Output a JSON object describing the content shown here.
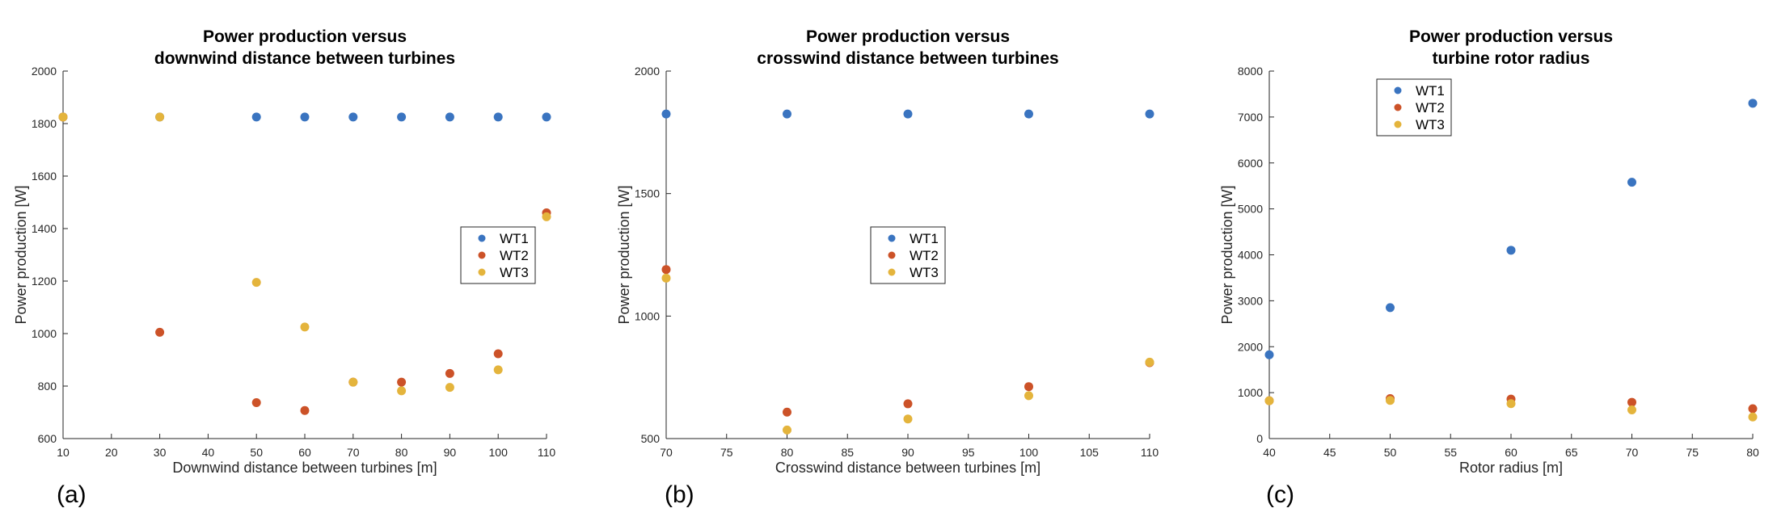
{
  "colors": {
    "WT1": "#3a74c0",
    "WT2": "#cc5228",
    "WT3": "#e4b43c",
    "axis": "#262626"
  },
  "chart_data": [
    {
      "type": "scatter",
      "panel_label": "(a)",
      "title": [
        "Power production versus",
        "downwind distance between turbines"
      ],
      "xlabel": "Downwind distance between turbines  [m]",
      "ylabel": "Power production [W]",
      "xlim": [
        10,
        110
      ],
      "ylim": [
        600,
        2000
      ],
      "xticks": [
        10,
        20,
        30,
        40,
        50,
        60,
        70,
        80,
        90,
        100,
        110
      ],
      "yticks": [
        600,
        800,
        1000,
        1200,
        1400,
        1600,
        1800,
        2000
      ],
      "grid": false,
      "legend": "right-center",
      "series": [
        {
          "name": "WT1",
          "x": [
            10,
            30,
            50,
            60,
            70,
            80,
            90,
            100,
            110
          ],
          "y": [
            1825,
            1825,
            1825,
            1825,
            1825,
            1825,
            1825,
            1825,
            1825
          ]
        },
        {
          "name": "WT2",
          "x": [
            10,
            30,
            50,
            60,
            70,
            80,
            90,
            100,
            110
          ],
          "y": [
            1825,
            1005,
            737,
            707,
            815,
            815,
            848,
            923,
            1460
          ]
        },
        {
          "name": "WT3",
          "x": [
            10,
            30,
            50,
            60,
            70,
            80,
            90,
            100,
            110
          ],
          "y": [
            1825,
            1825,
            1195,
            1025,
            815,
            782,
            795,
            862,
            1445
          ]
        }
      ]
    },
    {
      "type": "scatter",
      "panel_label": "(b)",
      "title": [
        "Power production versus",
        "crosswind distance between turbines"
      ],
      "xlabel": "Crosswind distance between turbines [m]",
      "ylabel": "Power production [W]",
      "xlim": [
        70,
        110
      ],
      "ylim": [
        500,
        2000
      ],
      "xticks": [
        70,
        75,
        80,
        85,
        90,
        95,
        100,
        105,
        110
      ],
      "yticks": [
        500,
        1000,
        1500,
        2000
      ],
      "grid": false,
      "legend": "center",
      "series": [
        {
          "name": "WT1",
          "x": [
            70,
            80,
            90,
            100,
            110
          ],
          "y": [
            1825,
            1825,
            1825,
            1825,
            1825
          ]
        },
        {
          "name": "WT2",
          "x": [
            70,
            80,
            90,
            100,
            110
          ],
          "y": [
            1190,
            608,
            642,
            712,
            810
          ]
        },
        {
          "name": "WT3",
          "x": [
            70,
            80,
            90,
            100,
            110
          ],
          "y": [
            1155,
            535,
            580,
            675,
            812
          ]
        }
      ]
    },
    {
      "type": "scatter",
      "panel_label": "(c)",
      "title": [
        "Power production versus",
        "turbine rotor radius"
      ],
      "xlabel": "Rotor radius [m]",
      "ylabel": "Power production [W]",
      "xlim": [
        40,
        80
      ],
      "ylim": [
        0,
        8000
      ],
      "xticks": [
        40,
        45,
        50,
        55,
        60,
        65,
        70,
        75,
        80
      ],
      "yticks": [
        0,
        1000,
        2000,
        3000,
        4000,
        5000,
        6000,
        7000,
        8000
      ],
      "grid": false,
      "legend": "top-left",
      "series": [
        {
          "name": "WT1",
          "x": [
            40,
            50,
            60,
            70,
            80
          ],
          "y": [
            1825,
            2850,
            4100,
            5580,
            7300
          ]
        },
        {
          "name": "WT2",
          "x": [
            40,
            50,
            60,
            70,
            80
          ],
          "y": [
            825,
            870,
            860,
            790,
            650
          ]
        },
        {
          "name": "WT3",
          "x": [
            40,
            50,
            60,
            70,
            80
          ],
          "y": [
            825,
            830,
            760,
            625,
            470
          ]
        }
      ]
    }
  ]
}
